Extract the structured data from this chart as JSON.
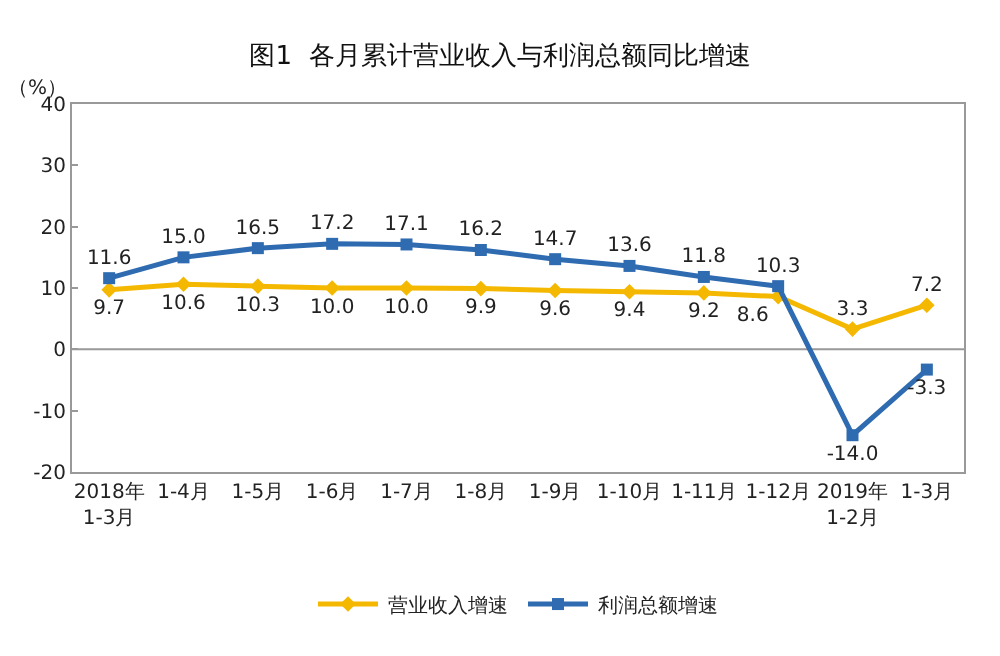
{
  "chart_data": {
    "type": "line",
    "title": "图1  各月累计营业收入与利润总额同比增速",
    "ylabel": "（%）",
    "categories": [
      "2018年\n1-3月",
      "1-4月",
      "1-5月",
      "1-6月",
      "1-7月",
      "1-8月",
      "1-9月",
      "1-10月",
      "1-11月",
      "1-12月",
      "2019年\n1-2月",
      "1-3月"
    ],
    "series": [
      {
        "name": "营业收入增速",
        "color": "#f5b800",
        "marker": "diamond",
        "values": [
          9.7,
          10.6,
          10.3,
          10.0,
          10.0,
          9.9,
          9.6,
          9.4,
          9.2,
          8.6,
          3.3,
          7.2
        ],
        "value_labels": [
          "9.7",
          "10.6",
          "10.3",
          "10.0",
          "10.0",
          "9.9",
          "9.6",
          "9.4",
          "9.2",
          "8.6",
          "3.3",
          "7.2"
        ]
      },
      {
        "name": "利润总额增速",
        "color": "#2e6bb0",
        "marker": "square",
        "values": [
          11.6,
          15.0,
          16.5,
          17.2,
          17.1,
          16.2,
          14.7,
          13.6,
          11.8,
          10.3,
          -14.0,
          -3.3
        ],
        "value_labels": [
          "11.6",
          "15.0",
          "16.5",
          "17.2",
          "17.1",
          "16.2",
          "14.7",
          "13.6",
          "11.8",
          "10.3",
          "-14.0",
          "-3.3"
        ]
      }
    ],
    "ylim": [
      -20,
      40
    ],
    "yticks": [
      -20,
      -10,
      0,
      10,
      20,
      30,
      40
    ],
    "ref_lines": [
      {
        "axis": "y",
        "value": 0
      }
    ],
    "legend": "bottom",
    "line_style": "solid"
  }
}
